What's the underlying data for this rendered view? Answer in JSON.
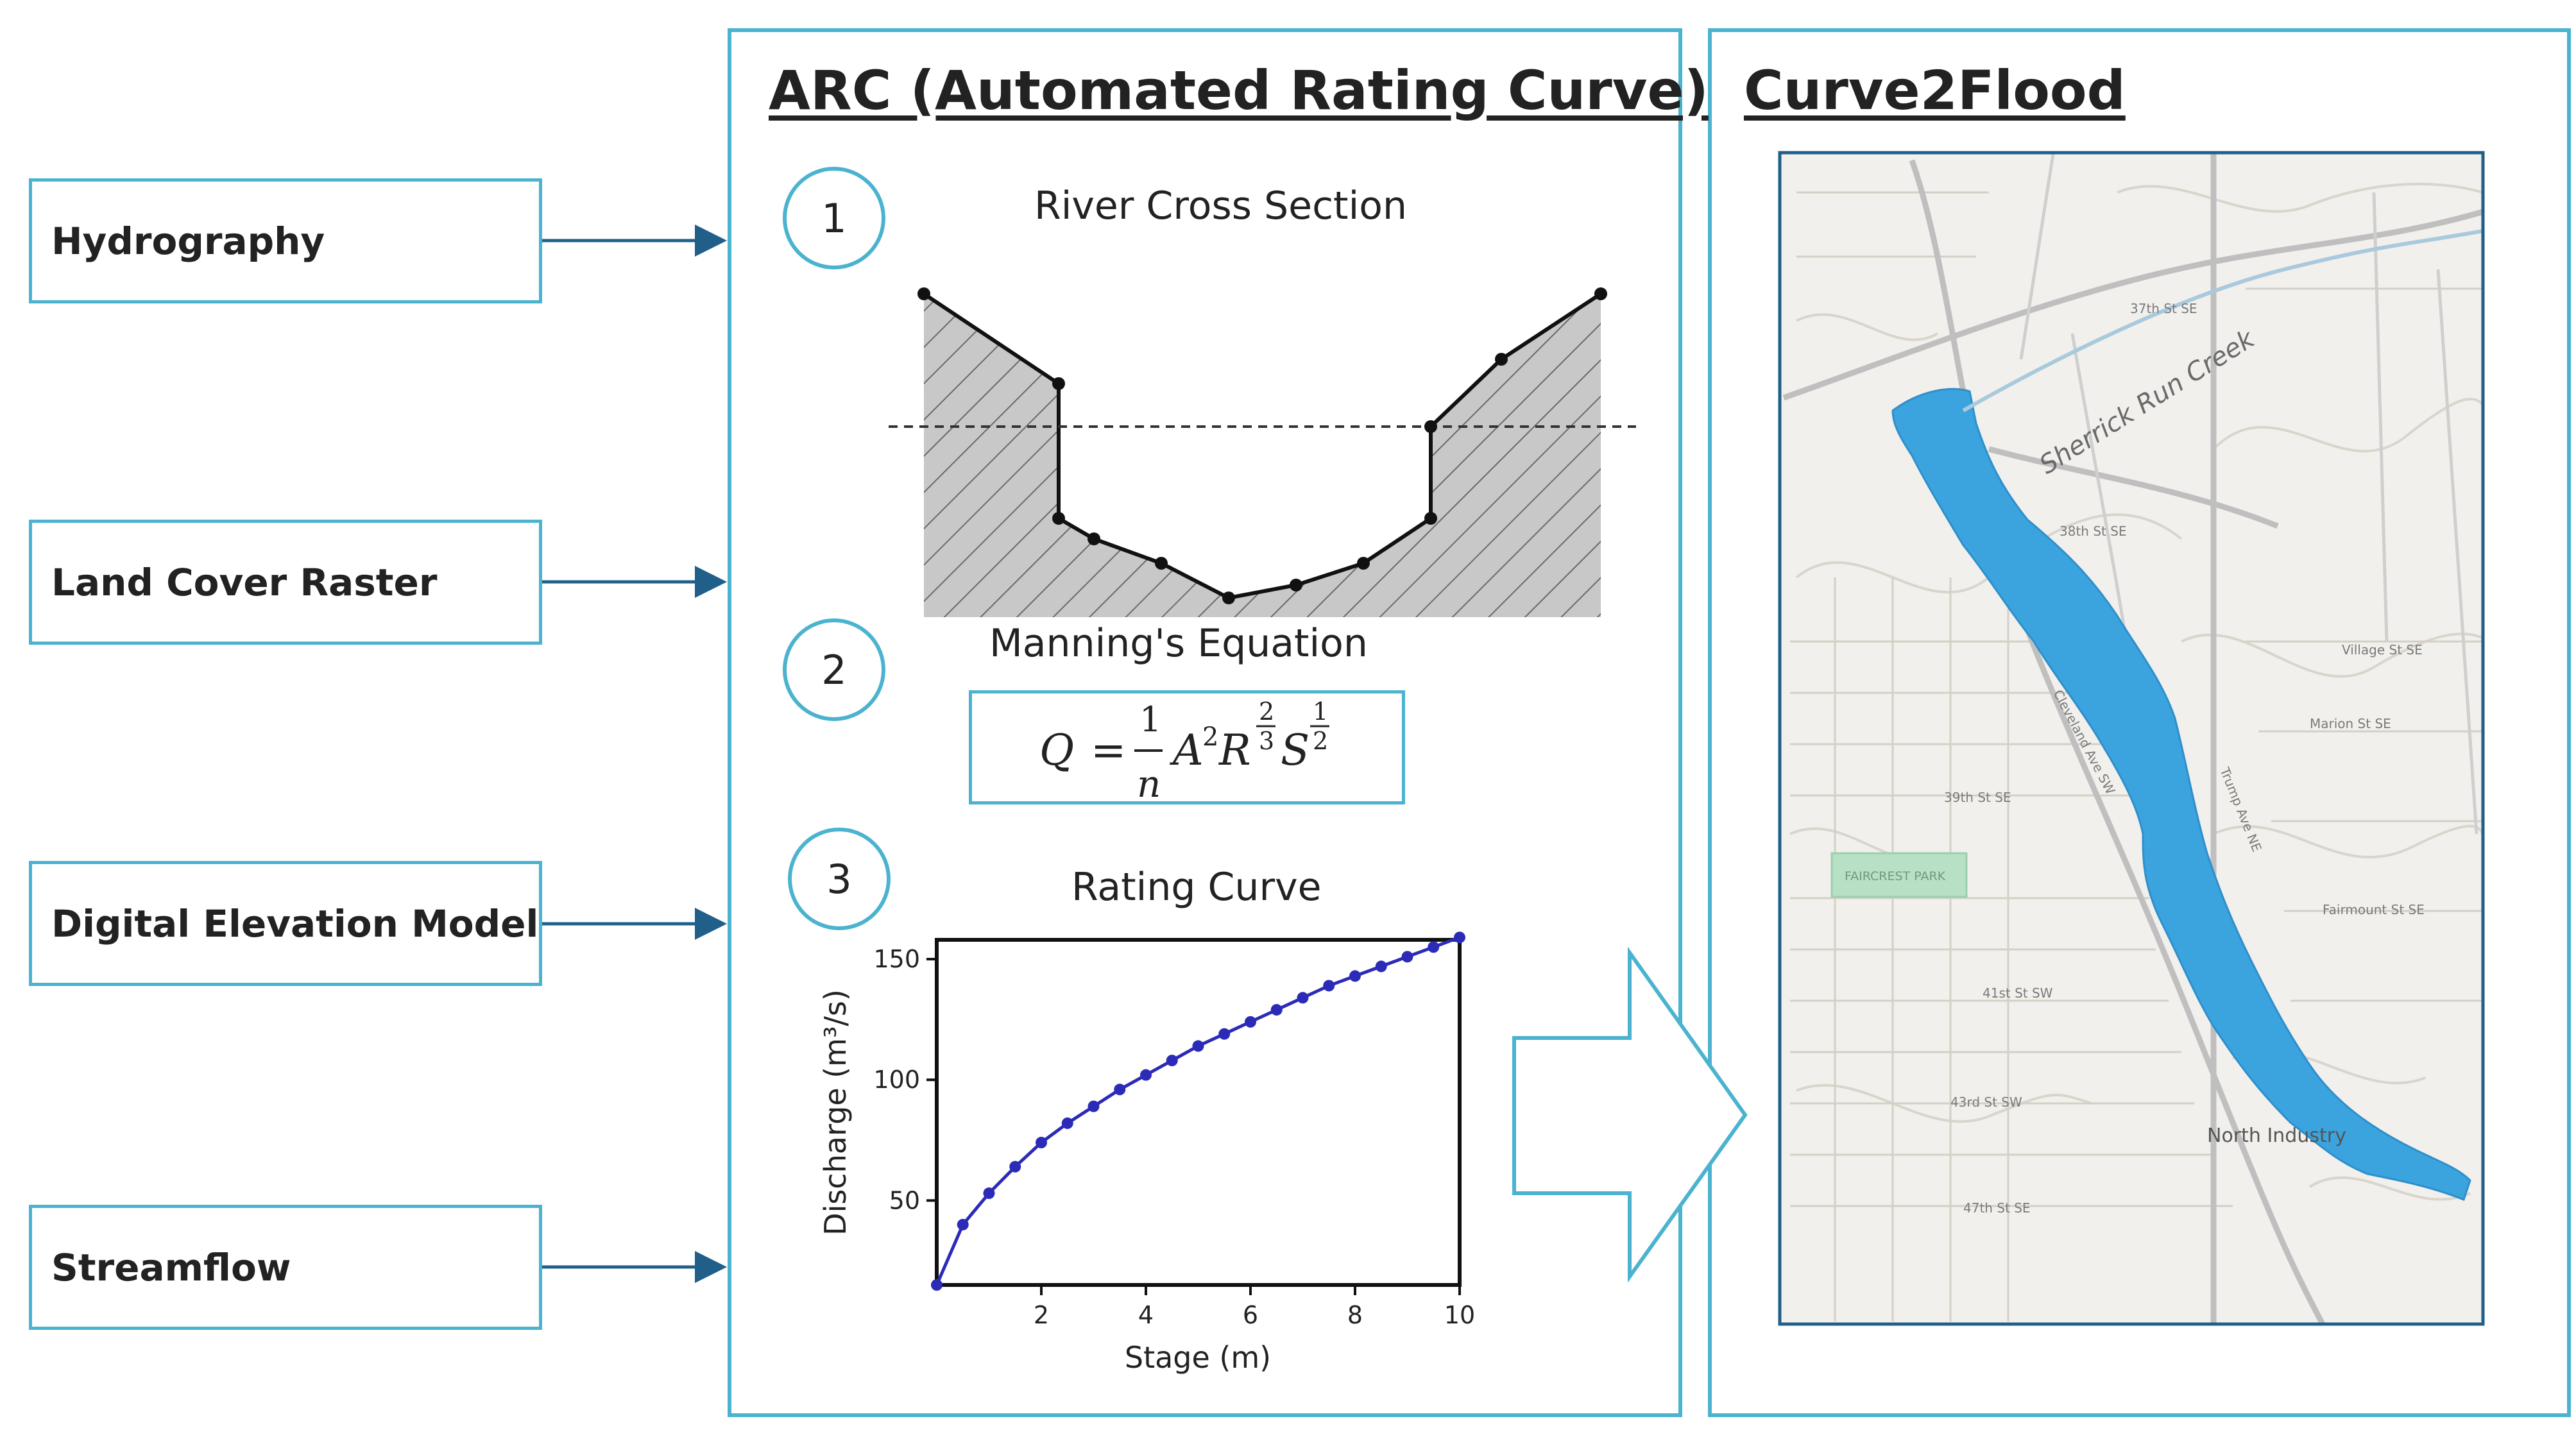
{
  "inputs": [
    {
      "label": "Hydrography"
    },
    {
      "label": "Land Cover Raster"
    },
    {
      "label": "Digital Elevation Model"
    },
    {
      "label": "Streamflow"
    }
  ],
  "arc": {
    "title": "ARC (Automated Rating Curve)",
    "steps": [
      {
        "number": "1",
        "title": "River Cross Section"
      },
      {
        "number": "2",
        "title": "Manning's Equation"
      },
      {
        "number": "3",
        "title": "Rating Curve"
      }
    ]
  },
  "curve2flood": {
    "title": "Curve2Flood",
    "map_labels": [
      "Sherrick Run Creek",
      "FAIRCREST PARK",
      "North Industry",
      "37th St SE",
      "38th St SE",
      "39th St SE",
      "41st St SW",
      "43rd St SW",
      "47th St SE",
      "Village St SE",
      "Marion St SE",
      "Fairmount St SE",
      "Trump Ave NE",
      "Cleveland Ave SW"
    ]
  },
  "chart_data": {
    "type": "line",
    "title": "Rating Curve",
    "xlabel": "Stage (m)",
    "ylabel": "Discharge (m³/s)",
    "xlim": [
      0,
      10
    ],
    "ylim": [
      15,
      158
    ],
    "xticks": [
      "2",
      "4",
      "6",
      "8",
      "10"
    ],
    "yticks": [
      "50",
      "100",
      "150"
    ],
    "x": [
      0.0,
      0.5,
      1.0,
      1.5,
      2.0,
      2.5,
      3.0,
      3.5,
      4.0,
      4.5,
      5.0,
      5.5,
      6.0,
      6.5,
      7.0,
      7.5,
      8.0,
      8.5,
      9.0,
      9.5,
      10.0
    ],
    "y": [
      15,
      40,
      53,
      64,
      74,
      82,
      89,
      96,
      102,
      108,
      114,
      119,
      124,
      129,
      134,
      139,
      143,
      147,
      151,
      155,
      159
    ],
    "grid": false,
    "marker": "circle",
    "color": "#2b2bb8"
  },
  "equation": {
    "text": "Q = (1/n) A² R^(2/3) S^(1/2)",
    "lhs": "Q",
    "eq": "=",
    "frac_num": "1",
    "frac_den": "n",
    "A": "A",
    "A_exp": "2",
    "R": "R",
    "R_exp_num": "2",
    "R_exp_den": "3",
    "S": "S",
    "S_exp_num": "1",
    "S_exp_den": "2"
  },
  "colors": {
    "accent": "#4bb3cf",
    "arrow": "#1f5f8a",
    "flood": "#3ba3de",
    "series": "#2b2bb8",
    "ground": "#c8c8c8"
  }
}
